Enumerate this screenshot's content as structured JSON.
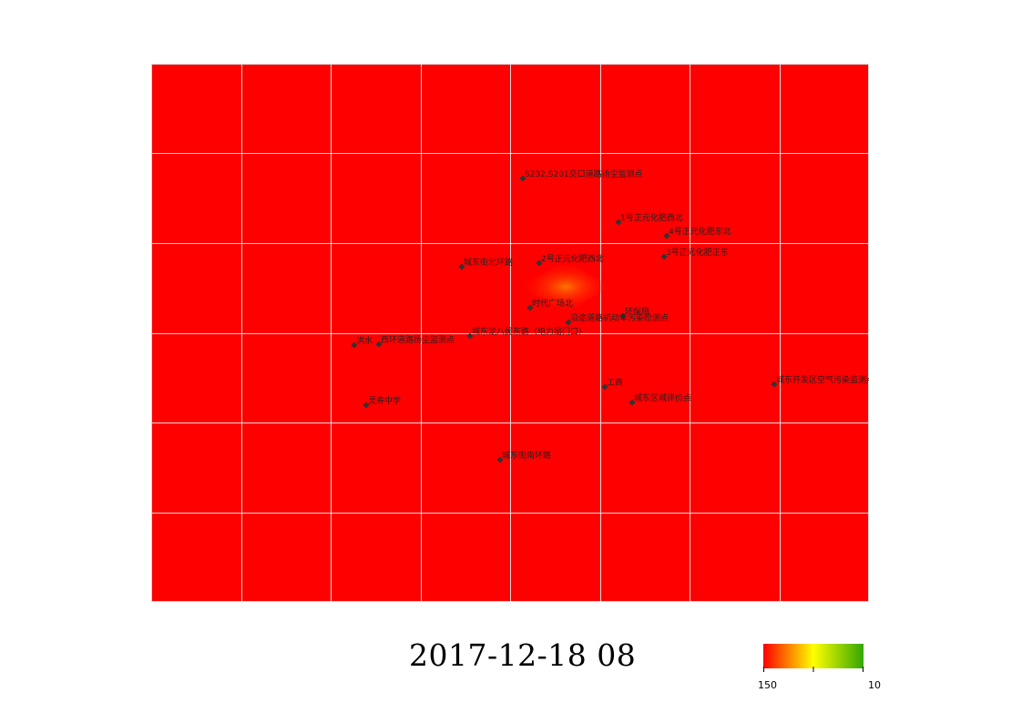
{
  "colors": {
    "background": "#ff0000",
    "gridline": "#d9d9d9",
    "hotspot_center": "#ff8000",
    "scale_high": "#ff0000",
    "scale_mid": "#ffff00",
    "scale_low": "#33a600"
  },
  "map": {
    "timestamp": "2017-12-18 08",
    "stations": [
      {
        "name": "S232,S201交口道路扬尘监测点"
      },
      {
        "name": "1号正元化肥西北"
      },
      {
        "name": "4号正元化肥东北"
      },
      {
        "name": "3号正元化肥正东"
      },
      {
        "name": "2号正元化肥西北"
      },
      {
        "name": "城东街北环路"
      },
      {
        "name": "时代广场北"
      },
      {
        "name": "环保局"
      },
      {
        "name": "沿途道路机动车污染检测点"
      },
      {
        "name": "城东龙八民东路（电力局门口）"
      },
      {
        "name": "西环道路扬尘监测点"
      },
      {
        "name": "洪水"
      },
      {
        "name": "工商"
      },
      {
        "name": "城东开发区空气污染监测点"
      },
      {
        "name": "灵寿中学"
      },
      {
        "name": "城东区城评价点"
      },
      {
        "name": "城东街南环路"
      }
    ]
  },
  "legend": {
    "min_label": "150",
    "max_label": "10"
  }
}
